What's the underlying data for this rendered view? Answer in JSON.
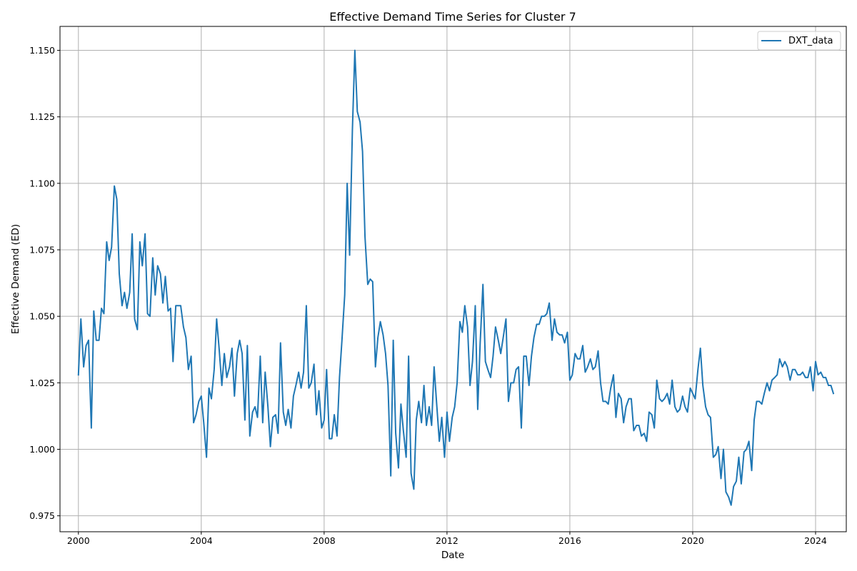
{
  "chart_data": {
    "type": "line",
    "title": "Effective Demand Time Series for Cluster 7",
    "xlabel": "Date",
    "ylabel": "Effective Demand (ED)",
    "xlim": [
      1999.4,
      2025.0
    ],
    "ylim": [
      0.969,
      1.159
    ],
    "x_ticks": [
      2000,
      2004,
      2008,
      2012,
      2016,
      2020,
      2024
    ],
    "x_tick_labels": [
      "2000",
      "2004",
      "2008",
      "2012",
      "2016",
      "2020",
      "2024"
    ],
    "y_ticks": [
      0.975,
      1.0,
      1.025,
      1.05,
      1.075,
      1.1,
      1.125,
      1.15
    ],
    "y_tick_labels": [
      "0.975",
      "1.000",
      "1.025",
      "1.050",
      "1.075",
      "1.100",
      "1.125",
      "1.150"
    ],
    "grid": true,
    "legend": "top-right",
    "series": [
      {
        "name": "DXT_data",
        "color": "#1f77b4",
        "points": [
          [
            2000.0,
            1.028
          ],
          [
            2000.08,
            1.049
          ],
          [
            2000.17,
            1.031
          ],
          [
            2000.25,
            1.039
          ],
          [
            2000.33,
            1.041
          ],
          [
            2000.42,
            1.008
          ],
          [
            2000.5,
            1.052
          ],
          [
            2000.58,
            1.041
          ],
          [
            2000.67,
            1.041
          ],
          [
            2000.75,
            1.053
          ],
          [
            2000.83,
            1.051
          ],
          [
            2000.92,
            1.078
          ],
          [
            2001.0,
            1.071
          ],
          [
            2001.08,
            1.076
          ],
          [
            2001.17,
            1.099
          ],
          [
            2001.25,
            1.094
          ],
          [
            2001.33,
            1.066
          ],
          [
            2001.42,
            1.054
          ],
          [
            2001.5,
            1.059
          ],
          [
            2001.58,
            1.053
          ],
          [
            2001.67,
            1.059
          ],
          [
            2001.75,
            1.081
          ],
          [
            2001.83,
            1.049
          ],
          [
            2001.92,
            1.045
          ],
          [
            2002.0,
            1.078
          ],
          [
            2002.08,
            1.069
          ],
          [
            2002.17,
            1.081
          ],
          [
            2002.25,
            1.051
          ],
          [
            2002.33,
            1.05
          ],
          [
            2002.42,
            1.072
          ],
          [
            2002.5,
            1.058
          ],
          [
            2002.58,
            1.069
          ],
          [
            2002.67,
            1.066
          ],
          [
            2002.75,
            1.055
          ],
          [
            2002.83,
            1.065
          ],
          [
            2002.92,
            1.052
          ],
          [
            2003.0,
            1.053
          ],
          [
            2003.08,
            1.033
          ],
          [
            2003.17,
            1.054
          ],
          [
            2003.25,
            1.054
          ],
          [
            2003.33,
            1.054
          ],
          [
            2003.42,
            1.046
          ],
          [
            2003.5,
            1.042
          ],
          [
            2003.58,
            1.03
          ],
          [
            2003.67,
            1.035
          ],
          [
            2003.75,
            1.01
          ],
          [
            2003.83,
            1.013
          ],
          [
            2003.92,
            1.018
          ],
          [
            2004.0,
            1.02
          ],
          [
            2004.08,
            1.01
          ],
          [
            2004.17,
            0.997
          ],
          [
            2004.25,
            1.023
          ],
          [
            2004.33,
            1.019
          ],
          [
            2004.42,
            1.03
          ],
          [
            2004.5,
            1.049
          ],
          [
            2004.58,
            1.038
          ],
          [
            2004.67,
            1.024
          ],
          [
            2004.75,
            1.036
          ],
          [
            2004.83,
            1.027
          ],
          [
            2004.92,
            1.031
          ],
          [
            2005.0,
            1.038
          ],
          [
            2005.08,
            1.02
          ],
          [
            2005.17,
            1.036
          ],
          [
            2005.25,
            1.041
          ],
          [
            2005.33,
            1.036
          ],
          [
            2005.42,
            1.011
          ],
          [
            2005.5,
            1.039
          ],
          [
            2005.58,
            1.005
          ],
          [
            2005.67,
            1.014
          ],
          [
            2005.75,
            1.016
          ],
          [
            2005.83,
            1.012
          ],
          [
            2005.92,
            1.035
          ],
          [
            2006.0,
            1.01
          ],
          [
            2006.08,
            1.029
          ],
          [
            2006.17,
            1.016
          ],
          [
            2006.25,
            1.001
          ],
          [
            2006.33,
            1.012
          ],
          [
            2006.42,
            1.013
          ],
          [
            2006.5,
            1.006
          ],
          [
            2006.58,
            1.04
          ],
          [
            2006.67,
            1.014
          ],
          [
            2006.75,
            1.009
          ],
          [
            2006.83,
            1.015
          ],
          [
            2006.92,
            1.008
          ],
          [
            2007.0,
            1.02
          ],
          [
            2007.08,
            1.024
          ],
          [
            2007.17,
            1.029
          ],
          [
            2007.25,
            1.023
          ],
          [
            2007.33,
            1.029
          ],
          [
            2007.42,
            1.054
          ],
          [
            2007.5,
            1.023
          ],
          [
            2007.58,
            1.025
          ],
          [
            2007.67,
            1.032
          ],
          [
            2007.75,
            1.013
          ],
          [
            2007.83,
            1.022
          ],
          [
            2007.92,
            1.008
          ],
          [
            2008.0,
            1.011
          ],
          [
            2008.08,
            1.03
          ],
          [
            2008.17,
            1.004
          ],
          [
            2008.25,
            1.004
          ],
          [
            2008.33,
            1.013
          ],
          [
            2008.42,
            1.005
          ],
          [
            2008.5,
            1.027
          ],
          [
            2008.58,
            1.041
          ],
          [
            2008.67,
            1.058
          ],
          [
            2008.75,
            1.1
          ],
          [
            2008.83,
            1.073
          ],
          [
            2008.92,
            1.12
          ],
          [
            2009.0,
            1.15
          ],
          [
            2009.08,
            1.127
          ],
          [
            2009.17,
            1.123
          ],
          [
            2009.25,
            1.112
          ],
          [
            2009.33,
            1.08
          ],
          [
            2009.42,
            1.062
          ],
          [
            2009.5,
            1.064
          ],
          [
            2009.58,
            1.063
          ],
          [
            2009.67,
            1.031
          ],
          [
            2009.75,
            1.042
          ],
          [
            2009.83,
            1.048
          ],
          [
            2009.92,
            1.043
          ],
          [
            2010.0,
            1.036
          ],
          [
            2010.08,
            1.024
          ],
          [
            2010.17,
            0.99
          ],
          [
            2010.25,
            1.041
          ],
          [
            2010.33,
            1.006
          ],
          [
            2010.42,
            0.993
          ],
          [
            2010.5,
            1.017
          ],
          [
            2010.58,
            1.007
          ],
          [
            2010.67,
            0.997
          ],
          [
            2010.75,
            1.035
          ],
          [
            2010.83,
            0.991
          ],
          [
            2010.92,
            0.985
          ],
          [
            2011.0,
            1.011
          ],
          [
            2011.08,
            1.018
          ],
          [
            2011.17,
            1.01
          ],
          [
            2011.25,
            1.024
          ],
          [
            2011.33,
            1.009
          ],
          [
            2011.42,
            1.016
          ],
          [
            2011.5,
            1.009
          ],
          [
            2011.58,
            1.031
          ],
          [
            2011.67,
            1.016
          ],
          [
            2011.75,
            1.003
          ],
          [
            2011.83,
            1.012
          ],
          [
            2011.92,
            0.997
          ],
          [
            2012.0,
            1.014
          ],
          [
            2012.08,
            1.003
          ],
          [
            2012.17,
            1.012
          ],
          [
            2012.25,
            1.016
          ],
          [
            2012.33,
            1.025
          ],
          [
            2012.42,
            1.048
          ],
          [
            2012.5,
            1.044
          ],
          [
            2012.58,
            1.054
          ],
          [
            2012.67,
            1.046
          ],
          [
            2012.75,
            1.024
          ],
          [
            2012.83,
            1.033
          ],
          [
            2012.92,
            1.054
          ],
          [
            2013.0,
            1.015
          ],
          [
            2013.08,
            1.04
          ],
          [
            2013.17,
            1.062
          ],
          [
            2013.25,
            1.033
          ],
          [
            2013.33,
            1.03
          ],
          [
            2013.42,
            1.027
          ],
          [
            2013.5,
            1.035
          ],
          [
            2013.58,
            1.046
          ],
          [
            2013.67,
            1.041
          ],
          [
            2013.75,
            1.036
          ],
          [
            2013.83,
            1.042
          ],
          [
            2013.92,
            1.049
          ],
          [
            2014.0,
            1.018
          ],
          [
            2014.08,
            1.025
          ],
          [
            2014.17,
            1.025
          ],
          [
            2014.25,
            1.03
          ],
          [
            2014.33,
            1.031
          ],
          [
            2014.42,
            1.008
          ],
          [
            2014.5,
            1.035
          ],
          [
            2014.58,
            1.035
          ],
          [
            2014.67,
            1.024
          ],
          [
            2014.75,
            1.035
          ],
          [
            2014.83,
            1.042
          ],
          [
            2014.92,
            1.047
          ],
          [
            2015.0,
            1.047
          ],
          [
            2015.08,
            1.05
          ],
          [
            2015.17,
            1.05
          ],
          [
            2015.25,
            1.051
          ],
          [
            2015.33,
            1.055
          ],
          [
            2015.42,
            1.041
          ],
          [
            2015.5,
            1.049
          ],
          [
            2015.58,
            1.044
          ],
          [
            2015.67,
            1.043
          ],
          [
            2015.75,
            1.043
          ],
          [
            2015.83,
            1.04
          ],
          [
            2015.92,
            1.044
          ],
          [
            2016.0,
            1.026
          ],
          [
            2016.08,
            1.028
          ],
          [
            2016.17,
            1.036
          ],
          [
            2016.25,
            1.034
          ],
          [
            2016.33,
            1.034
          ],
          [
            2016.42,
            1.039
          ],
          [
            2016.5,
            1.029
          ],
          [
            2016.58,
            1.031
          ],
          [
            2016.67,
            1.034
          ],
          [
            2016.75,
            1.03
          ],
          [
            2016.83,
            1.031
          ],
          [
            2016.92,
            1.037
          ],
          [
            2017.0,
            1.025
          ],
          [
            2017.08,
            1.018
          ],
          [
            2017.17,
            1.018
          ],
          [
            2017.25,
            1.017
          ],
          [
            2017.33,
            1.023
          ],
          [
            2017.42,
            1.028
          ],
          [
            2017.5,
            1.012
          ],
          [
            2017.58,
            1.021
          ],
          [
            2017.67,
            1.019
          ],
          [
            2017.75,
            1.01
          ],
          [
            2017.83,
            1.016
          ],
          [
            2017.92,
            1.019
          ],
          [
            2018.0,
            1.019
          ],
          [
            2018.08,
            1.007
          ],
          [
            2018.17,
            1.009
          ],
          [
            2018.25,
            1.009
          ],
          [
            2018.33,
            1.005
          ],
          [
            2018.42,
            1.006
          ],
          [
            2018.5,
            1.003
          ],
          [
            2018.58,
            1.014
          ],
          [
            2018.67,
            1.013
          ],
          [
            2018.75,
            1.008
          ],
          [
            2018.83,
            1.026
          ],
          [
            2018.92,
            1.019
          ],
          [
            2019.0,
            1.018
          ],
          [
            2019.08,
            1.019
          ],
          [
            2019.17,
            1.021
          ],
          [
            2019.25,
            1.017
          ],
          [
            2019.33,
            1.026
          ],
          [
            2019.42,
            1.016
          ],
          [
            2019.5,
            1.014
          ],
          [
            2019.58,
            1.015
          ],
          [
            2019.67,
            1.02
          ],
          [
            2019.75,
            1.016
          ],
          [
            2019.83,
            1.014
          ],
          [
            2019.92,
            1.023
          ],
          [
            2020.0,
            1.021
          ],
          [
            2020.08,
            1.019
          ],
          [
            2020.17,
            1.03
          ],
          [
            2020.25,
            1.038
          ],
          [
            2020.33,
            1.024
          ],
          [
            2020.42,
            1.016
          ],
          [
            2020.5,
            1.013
          ],
          [
            2020.58,
            1.012
          ],
          [
            2020.67,
            0.997
          ],
          [
            2020.75,
            0.998
          ],
          [
            2020.83,
            1.001
          ],
          [
            2020.92,
            0.989
          ],
          [
            2021.0,
            1.0
          ],
          [
            2021.08,
            0.984
          ],
          [
            2021.17,
            0.982
          ],
          [
            2021.25,
            0.979
          ],
          [
            2021.33,
            0.986
          ],
          [
            2021.42,
            0.988
          ],
          [
            2021.5,
            0.997
          ],
          [
            2021.58,
            0.987
          ],
          [
            2021.67,
            0.999
          ],
          [
            2021.75,
            1.0
          ],
          [
            2021.83,
            1.003
          ],
          [
            2021.92,
            0.992
          ],
          [
            2022.0,
            1.011
          ],
          [
            2022.08,
            1.018
          ],
          [
            2022.17,
            1.018
          ],
          [
            2022.25,
            1.017
          ],
          [
            2022.33,
            1.021
          ],
          [
            2022.42,
            1.025
          ],
          [
            2022.5,
            1.022
          ],
          [
            2022.58,
            1.026
          ],
          [
            2022.67,
            1.027
          ],
          [
            2022.75,
            1.028
          ],
          [
            2022.83,
            1.034
          ],
          [
            2022.92,
            1.031
          ],
          [
            2023.0,
            1.033
          ],
          [
            2023.08,
            1.031
          ],
          [
            2023.17,
            1.026
          ],
          [
            2023.25,
            1.03
          ],
          [
            2023.33,
            1.03
          ],
          [
            2023.42,
            1.028
          ],
          [
            2023.5,
            1.028
          ],
          [
            2023.58,
            1.029
          ],
          [
            2023.67,
            1.027
          ],
          [
            2023.75,
            1.027
          ],
          [
            2023.83,
            1.031
          ],
          [
            2023.92,
            1.022
          ],
          [
            2024.0,
            1.033
          ],
          [
            2024.08,
            1.028
          ],
          [
            2024.17,
            1.029
          ],
          [
            2024.25,
            1.027
          ],
          [
            2024.33,
            1.027
          ],
          [
            2024.42,
            1.024
          ],
          [
            2024.5,
            1.024
          ],
          [
            2024.58,
            1.021
          ]
        ]
      }
    ]
  }
}
